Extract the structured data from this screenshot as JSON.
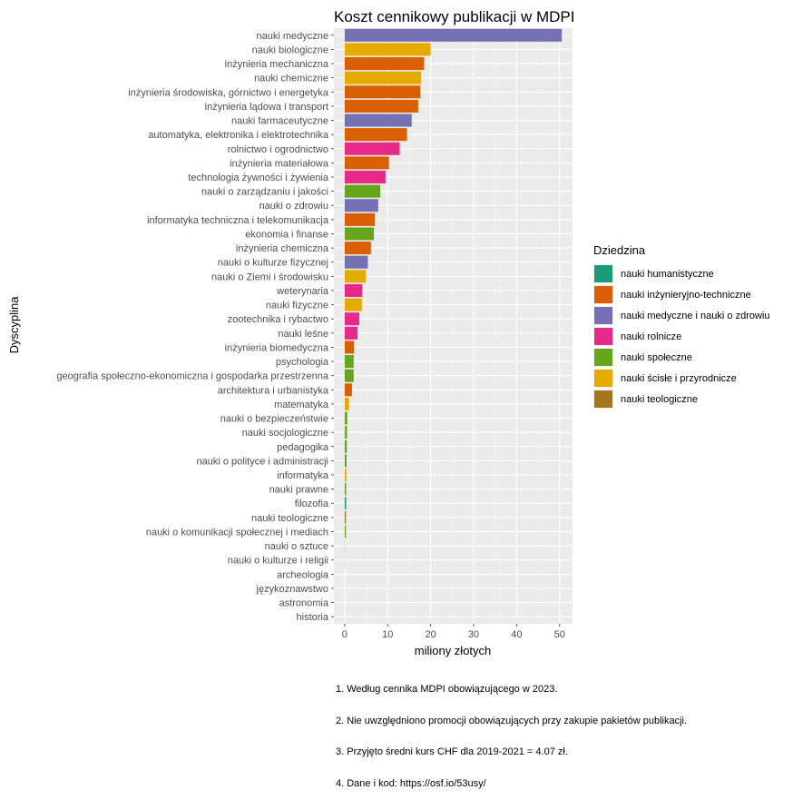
{
  "chart_data": {
    "type": "bar",
    "orientation": "horizontal",
    "title": "Koszt cennikowy publikacji w MDPI",
    "xlabel": "miliony złotych",
    "ylabel": "Dyscyplina",
    "xlim": [
      -2.5,
      53
    ],
    "xticks": [
      0,
      10,
      20,
      30,
      40,
      50
    ],
    "grid": true,
    "legend_position": "right",
    "legend": {
      "title": "Dziedzina",
      "entries": [
        {
          "name": "nauki humanistyczne",
          "color": "#1b9e77"
        },
        {
          "name": "nauki inżynieryjno-techniczne",
          "color": "#d95f02"
        },
        {
          "name": "nauki medyczne i nauki o zdrowiu",
          "color": "#7570b3"
        },
        {
          "name": "nauki rolnicze",
          "color": "#e7298a"
        },
        {
          "name": "nauki społeczne",
          "color": "#66a61e"
        },
        {
          "name": "nauki ścisłe i przyrodnicze",
          "color": "#e6ab02"
        },
        {
          "name": "nauki teologiczne",
          "color": "#a6761d"
        }
      ]
    },
    "bars": [
      {
        "category": "nauki medyczne",
        "value": 50.5,
        "field": "nauki medyczne i nauki o zdrowiu"
      },
      {
        "category": "nauki biologiczne",
        "value": 20.0,
        "field": "nauki ścisłe i przyrodnicze"
      },
      {
        "category": "inżynieria mechaniczna",
        "value": 18.5,
        "field": "nauki inżynieryjno-techniczne"
      },
      {
        "category": "nauki chemiczne",
        "value": 17.8,
        "field": "nauki ścisłe i przyrodnicze"
      },
      {
        "category": "inżynieria środowiska, górnictwo i energetyka",
        "value": 17.6,
        "field": "nauki inżynieryjno-techniczne"
      },
      {
        "category": "inżynieria lądowa i transport",
        "value": 17.1,
        "field": "nauki inżynieryjno-techniczne"
      },
      {
        "category": "nauki farmaceutyczne",
        "value": 15.6,
        "field": "nauki medyczne i nauki o zdrowiu"
      },
      {
        "category": "automatyka, elektronika i elektrotechnika",
        "value": 14.5,
        "field": "nauki inżynieryjno-techniczne"
      },
      {
        "category": "rolnictwo i ogrodnictwo",
        "value": 12.8,
        "field": "nauki rolnicze"
      },
      {
        "category": "inżynieria materiałowa",
        "value": 10.3,
        "field": "nauki inżynieryjno-techniczne"
      },
      {
        "category": "technologia żywności i żywienia",
        "value": 9.5,
        "field": "nauki rolnicze"
      },
      {
        "category": "nauki o zarządzaniu i jakości",
        "value": 8.3,
        "field": "nauki społeczne"
      },
      {
        "category": "nauki o zdrowiu",
        "value": 7.8,
        "field": "nauki medyczne i nauki o zdrowiu"
      },
      {
        "category": "informatyka techniczna i telekomunikacja",
        "value": 7.0,
        "field": "nauki inżynieryjno-techniczne"
      },
      {
        "category": "ekonomia i finanse",
        "value": 6.8,
        "field": "nauki społeczne"
      },
      {
        "category": "inżynieria chemiczna",
        "value": 6.1,
        "field": "nauki inżynieryjno-techniczne"
      },
      {
        "category": "nauki o kulturze fizycznej",
        "value": 5.4,
        "field": "nauki medyczne i nauki o zdrowiu"
      },
      {
        "category": "nauki o Ziemi i środowisku",
        "value": 4.9,
        "field": "nauki ścisłe i przyrodnicze"
      },
      {
        "category": "weterynaria",
        "value": 4.1,
        "field": "nauki rolnicze"
      },
      {
        "category": "nauki fizyczne",
        "value": 4.0,
        "field": "nauki ścisłe i przyrodnicze"
      },
      {
        "category": "zootechnika i rybactwo",
        "value": 3.4,
        "field": "nauki rolnicze"
      },
      {
        "category": "nauki leśne",
        "value": 3.0,
        "field": "nauki rolnicze"
      },
      {
        "category": "inżynieria biomedyczna",
        "value": 2.2,
        "field": "nauki inżynieryjno-techniczne"
      },
      {
        "category": "psychologia",
        "value": 2.1,
        "field": "nauki społeczne"
      },
      {
        "category": "geografia społeczno-ekonomiczna i gospodarka przestrzenna",
        "value": 2.1,
        "field": "nauki społeczne"
      },
      {
        "category": "architektura i urbanistyka",
        "value": 1.7,
        "field": "nauki inżynieryjno-techniczne"
      },
      {
        "category": "matematyka",
        "value": 1.0,
        "field": "nauki ścisłe i przyrodnicze"
      },
      {
        "category": "nauki o bezpieczeństwie",
        "value": 0.6,
        "field": "nauki społeczne"
      },
      {
        "category": "nauki socjologiczne",
        "value": 0.55,
        "field": "nauki społeczne"
      },
      {
        "category": "pedagogika",
        "value": 0.5,
        "field": "nauki społeczne"
      },
      {
        "category": "nauki o polityce i administracji",
        "value": 0.45,
        "field": "nauki społeczne"
      },
      {
        "category": "informatyka",
        "value": 0.4,
        "field": "nauki ścisłe i przyrodnicze"
      },
      {
        "category": "nauki prawne",
        "value": 0.35,
        "field": "nauki społeczne"
      },
      {
        "category": "filozofia",
        "value": 0.35,
        "field": "nauki humanistyczne"
      },
      {
        "category": "nauki teologiczne",
        "value": 0.3,
        "field": "nauki teologiczne"
      },
      {
        "category": "nauki o komunikacji społecznej i mediach",
        "value": 0.3,
        "field": "nauki społeczne"
      },
      {
        "category": "nauki o sztuce",
        "value": 0.05,
        "field": "nauki humanistyczne"
      },
      {
        "category": "nauki o kulturze i religii",
        "value": 0.04,
        "field": "nauki humanistyczne"
      },
      {
        "category": "archeologia",
        "value": 0.03,
        "field": "nauki humanistyczne"
      },
      {
        "category": "językoznawstwo",
        "value": 0.03,
        "field": "nauki humanistyczne"
      },
      {
        "category": "astronomia",
        "value": 0.02,
        "field": "nauki ścisłe i przyrodnicze"
      },
      {
        "category": "historia",
        "value": 0.02,
        "field": "nauki humanistyczne"
      }
    ],
    "notes": [
      "1. Według cennika MDPI obowiązującego w 2023.",
      "2. Nie uwzględniono promocji obowiązujących przy zakupie pakietów publikacji.",
      "3. Przyjęto średni kurs CHF dla 2019-2021 = 4.07 zł.",
      "4. Dane i kod: https://osf.io/53usy/"
    ]
  }
}
